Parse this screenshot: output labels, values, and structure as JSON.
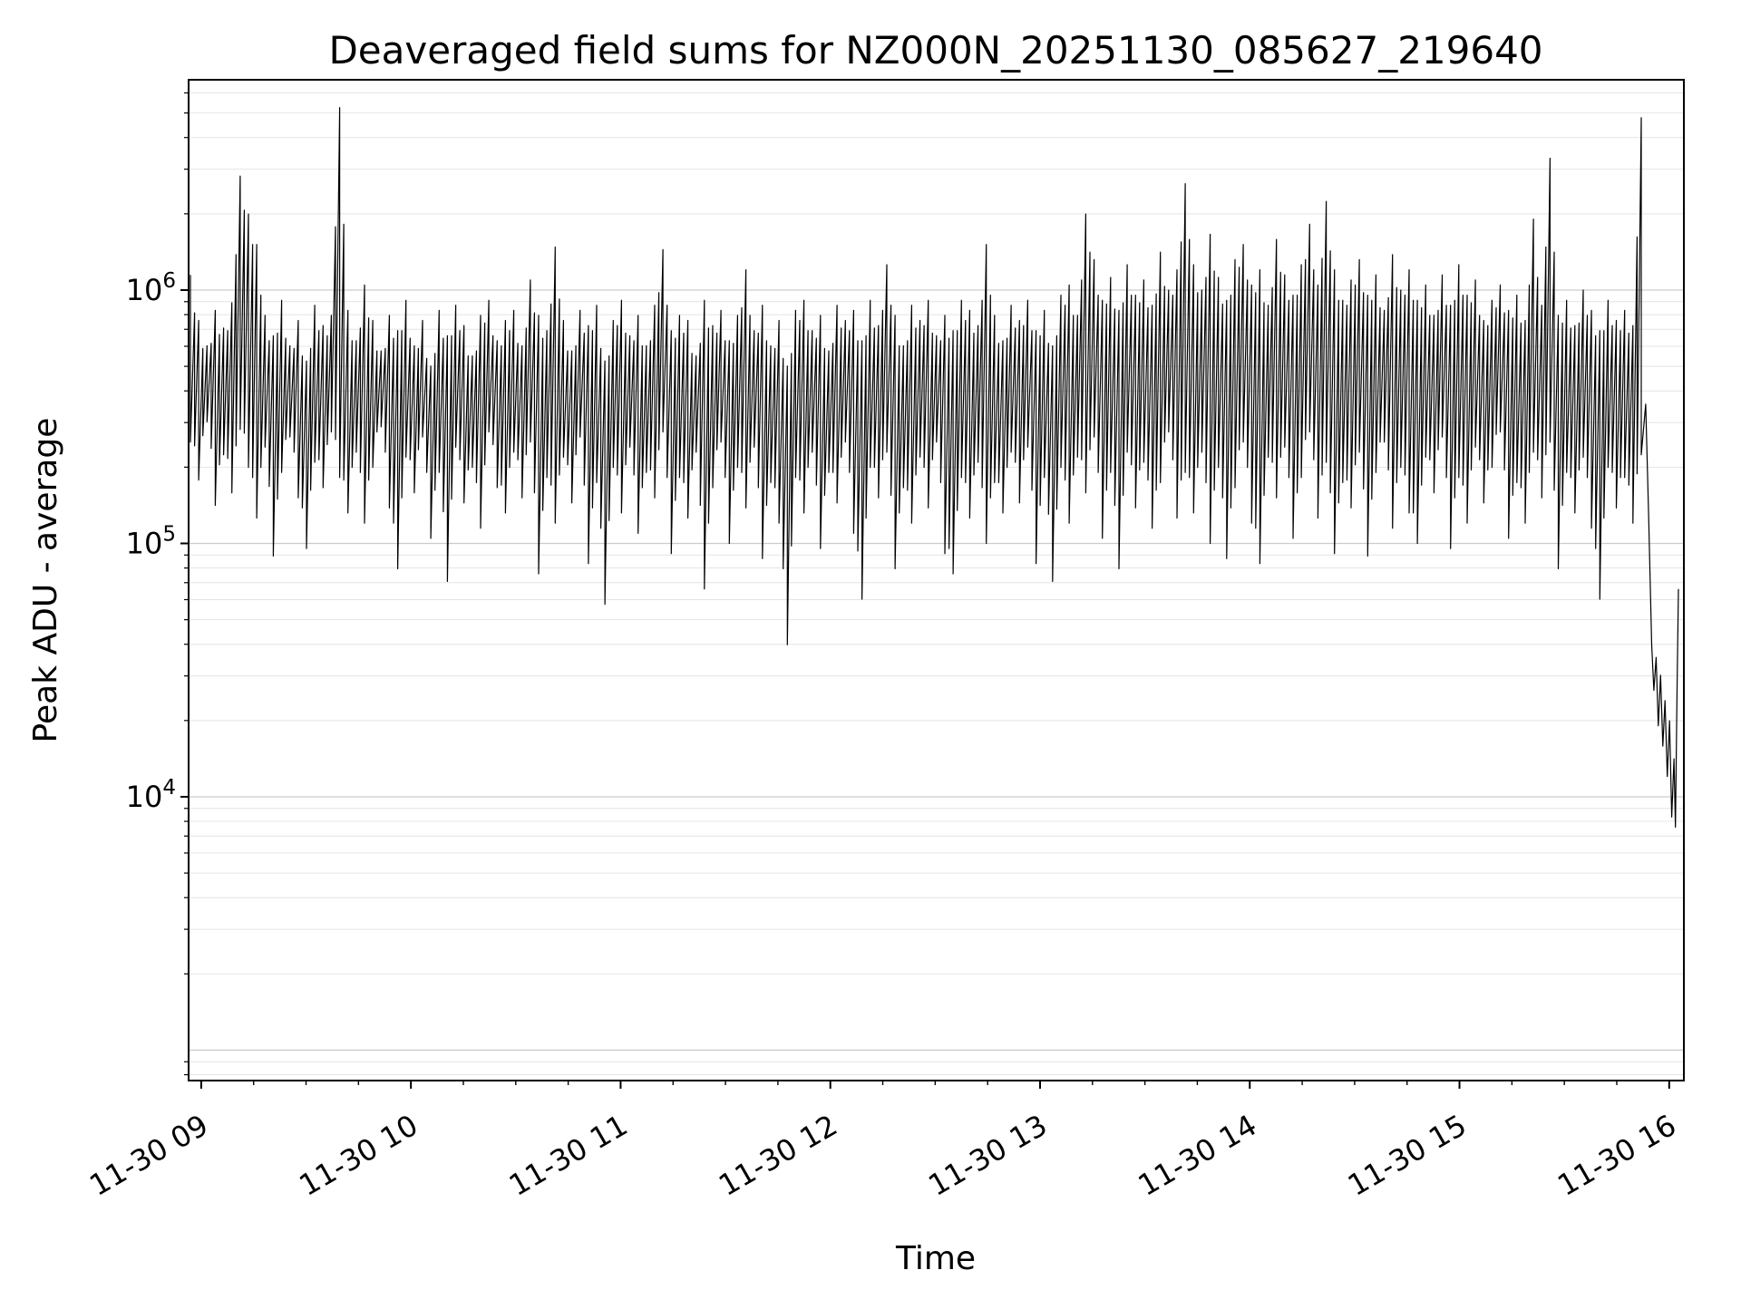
{
  "figure": {
    "background_color": "#ffffff",
    "line_color": "#000000",
    "grid_major_color": "#cccccc",
    "grid_minor_color": "#e4e4e4",
    "spine_color": "#000000"
  },
  "chart_data": {
    "type": "line",
    "title": "Deaveraged field sums for NZ000N_20251130_085627_219640",
    "xlabel": "Time",
    "ylabel": "Peak ADU - average",
    "y_scale": "log",
    "grid": true,
    "legend": "none",
    "series_name": "Peak ADU - average",
    "series_color": "#000000",
    "x_range_hours": [
      8.94,
      16.07
    ],
    "x_ticks": [
      {
        "label": "11-30 09",
        "hour": 9
      },
      {
        "label": "11-30 10",
        "hour": 10
      },
      {
        "label": "11-30 11",
        "hour": 11
      },
      {
        "label": "11-30 12",
        "hour": 12
      },
      {
        "label": "11-30 13",
        "hour": 13
      },
      {
        "label": "11-30 14",
        "hour": 14
      },
      {
        "label": "11-30 15",
        "hour": 15
      },
      {
        "label": "11-30 16",
        "hour": 16
      }
    ],
    "x_minor_tick_interval_hours": 0.25,
    "y_ticks": [
      {
        "label": "10^6",
        "exp": 6
      },
      {
        "label": "10^5",
        "exp": 5
      },
      {
        "label": "10^4",
        "exp": 4
      }
    ],
    "ylim_log10": [
      2.88,
      6.83
    ],
    "data_peak_approx": 5200000,
    "data_min_approx": 7600,
    "envelope_frac_span": [
      0,
      0.975
    ],
    "env_max_log10": [
      6.06,
      5.88,
      5.78,
      5.92,
      5.85,
      5.95,
      6.45,
      6.3,
      6.18,
      5.9,
      5.82,
      5.96,
      5.78,
      5.88,
      5.72,
      5.94,
      5.86,
      5.9,
      6.72,
      5.92,
      5.8,
      6.02,
      5.88,
      5.76,
      5.9,
      5.84,
      5.96,
      5.78,
      5.88,
      5.7,
      5.92,
      5.82,
      5.94,
      5.86,
      5.74,
      5.9,
      5.96,
      5.8,
      5.88,
      5.92,
      5.78,
      6.04,
      5.9,
      5.84,
      6.17,
      5.88,
      5.76,
      5.92,
      5.86,
      5.94,
      5.72,
      5.88,
      5.96,
      5.82,
      5.9,
      5.78,
      5.94,
      6.16,
      5.84,
      5.9,
      5.88,
      5.74,
      5.96,
      5.86,
      5.92,
      5.8,
      5.9,
      6.08,
      5.84,
      5.94,
      5.78,
      5.88,
      5.7,
      5.92,
      5.96,
      5.84,
      5.9,
      5.76,
      5.94,
      5.88,
      5.92,
      5.8,
      5.96,
      5.86,
      6.1,
      5.9,
      5.78,
      5.94,
      5.88,
      5.96,
      5.82,
      5.9,
      5.84,
      5.96,
      5.92,
      5.86,
      6.18,
      5.9,
      5.8,
      5.94,
      5.88,
      5.96,
      5.84,
      5.92,
      5.78,
      5.98,
      6.02,
      5.9,
      6.3,
      6.12,
      5.96,
      6.05,
      5.92,
      6.1,
      5.98,
      6.04,
      5.94,
      6.15,
      6.0,
      6.08,
      6.42,
      6.1,
      6.0,
      6.22,
      6.05,
      5.96,
      6.12,
      6.18,
      6.02,
      6.08,
      5.94,
      6.2,
      6.06,
      5.98,
      6.1,
      6.26,
      6.02,
      6.35,
      6.08,
      5.96,
      6.04,
      6.12,
      5.98,
      6.06,
      5.92,
      6.14,
      6.0,
      6.08,
      5.96,
      6.02,
      5.9,
      6.06,
      5.94,
      6.1,
      5.98,
      6.04,
      5.88,
      5.96,
      6.02,
      5.92,
      5.98,
      5.88,
      6.28,
      5.94,
      6.52,
      5.9,
      5.96,
      5.86,
      6.0,
      5.92,
      5.84,
      5.96,
      5.88,
      5.92,
      5.86,
      6.68
    ],
    "env_min_log10": [
      5.4,
      5.25,
      5.48,
      5.15,
      5.35,
      5.2,
      5.45,
      5.3,
      5.1,
      5.38,
      4.95,
      5.28,
      5.42,
      5.18,
      4.98,
      5.32,
      5.22,
      5.44,
      5.26,
      5.12,
      5.36,
      5.08,
      5.3,
      5.46,
      5.14,
      4.9,
      5.34,
      5.2,
      5.42,
      5.02,
      5.28,
      4.85,
      5.38,
      5.16,
      5.3,
      5.06,
      5.44,
      5.22,
      5.12,
      5.36,
      5.18,
      5.4,
      4.88,
      5.26,
      5.08,
      5.34,
      5.16,
      5.42,
      4.92,
      5.24,
      4.76,
      5.3,
      5.12,
      5.38,
      5.04,
      5.28,
      5.18,
      5.44,
      4.96,
      5.26,
      5.1,
      5.36,
      4.82,
      5.22,
      5.4,
      5.0,
      5.3,
      5.14,
      5.38,
      4.94,
      5.24,
      5.08,
      4.6,
      5.26,
      5.12,
      5.36,
      4.98,
      5.28,
      5.16,
      5.4,
      5.04,
      4.78,
      5.3,
      5.18,
      5.36,
      4.9,
      5.22,
      5.08,
      5.34,
      5.14,
      5.4,
      4.96,
      4.88,
      5.26,
      5.1,
      5.32,
      5.0,
      5.24,
      5.12,
      5.36,
      5.16,
      5.38,
      4.92,
      5.26,
      4.85,
      5.3,
      5.08,
      5.34,
      5.2,
      5.42,
      5.02,
      5.28,
      4.9,
      5.36,
      5.14,
      5.32,
      5.06,
      5.24,
      5.44,
      5.1,
      5.28,
      5.12,
      5.36,
      5.0,
      5.3,
      4.94,
      5.22,
      5.4,
      5.08,
      4.92,
      5.34,
      5.18,
      5.38,
      5.02,
      5.26,
      5.44,
      5.1,
      5.32,
      4.96,
      5.24,
      5.14,
      5.36,
      4.95,
      5.28,
      5.4,
      5.06,
      5.3,
      5.12,
      5.0,
      5.34,
      5.2,
      5.42,
      4.98,
      5.26,
      5.08,
      5.38,
      5.16,
      5.3,
      5.44,
      5.02,
      5.24,
      5.08,
      5.36,
      5.18,
      5.4,
      4.9,
      5.28,
      5.12,
      5.34,
      5.06,
      4.78,
      5.3,
      5.14,
      5.26,
      5.08,
      5.35
    ],
    "tail_points_log10": [
      [
        0.978,
        5.55
      ],
      [
        0.98,
        5.1
      ],
      [
        0.982,
        4.6
      ],
      [
        0.9835,
        4.42
      ],
      [
        0.985,
        4.55
      ],
      [
        0.9865,
        4.28
      ],
      [
        0.988,
        4.48
      ],
      [
        0.9895,
        4.2
      ],
      [
        0.991,
        4.38
      ],
      [
        0.9925,
        4.08
      ],
      [
        0.994,
        4.3
      ],
      [
        0.9955,
        3.92
      ],
      [
        0.997,
        4.15
      ],
      [
        0.998,
        3.88
      ],
      [
        0.999,
        4.4
      ],
      [
        1.0,
        4.82
      ]
    ]
  }
}
